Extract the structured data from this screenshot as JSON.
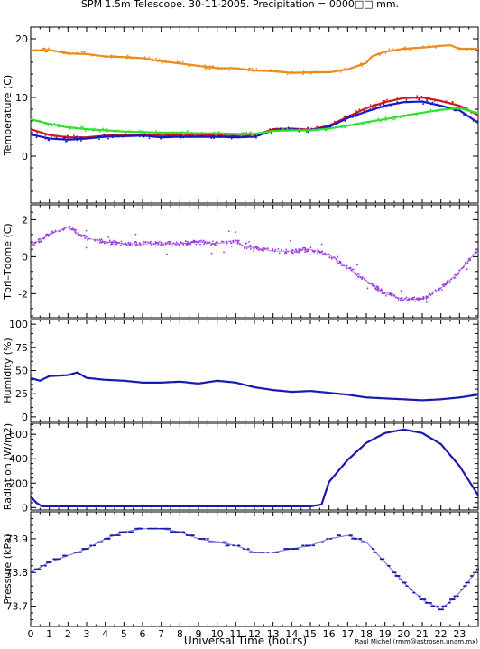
{
  "title": "SPM 1.5m Telescope. 30-11-2005. Precipitation = 0000□□ mm.",
  "xlabel": "Universal Time (hours)",
  "credit": "Raul Michel (rmm@astrosen.unam.mx)",
  "colors": {
    "orange": "#ee8a1c",
    "red": "#d01818",
    "blue": "#1818c8",
    "green": "#30e030",
    "purple": "#9a3ae0",
    "navy": "#1a1ab0"
  },
  "chart_data": [
    {
      "type": "scatter",
      "ylabel": "Temperature (C)",
      "xlim": [
        0,
        24
      ],
      "ylim": [
        -8,
        22
      ],
      "yticks": [
        0,
        10,
        20
      ],
      "xticks": [
        0,
        1,
        2,
        3,
        4,
        5,
        6,
        7,
        8,
        9,
        10,
        11,
        12,
        13,
        14,
        15,
        16,
        17,
        18,
        19,
        20,
        21,
        22,
        23
      ],
      "series": [
        {
          "color": "#ee8a1c",
          "points": [
            [
              0,
              18.0
            ],
            [
              1,
              18.1
            ],
            [
              2,
              17.5
            ],
            [
              3,
              17.4
            ],
            [
              4,
              17.0
            ],
            [
              5,
              16.9
            ],
            [
              6,
              16.7
            ],
            [
              7,
              16.2
            ],
            [
              8,
              15.8
            ],
            [
              9,
              15.4
            ],
            [
              10,
              15.0
            ],
            [
              11,
              15.0
            ],
            [
              12,
              14.6
            ],
            [
              13,
              14.5
            ],
            [
              14,
              14.2
            ],
            [
              15,
              14.3
            ],
            [
              16,
              14.3
            ],
            [
              17,
              14.8
            ],
            [
              18,
              15.9
            ],
            [
              18.3,
              17.0
            ],
            [
              19,
              17.8
            ],
            [
              20,
              18.3
            ],
            [
              21,
              18.5
            ],
            [
              22,
              18.8
            ],
            [
              22.5,
              18.9
            ],
            [
              23,
              18.3
            ],
            [
              24,
              18.3
            ]
          ]
        },
        {
          "color": "#d01818",
          "points": [
            [
              0,
              4.6
            ],
            [
              1,
              3.6
            ],
            [
              2,
              3.2
            ],
            [
              3,
              3.2
            ],
            [
              4,
              3.5
            ],
            [
              5,
              3.6
            ],
            [
              6,
              3.7
            ],
            [
              7,
              3.5
            ],
            [
              8,
              3.6
            ],
            [
              9,
              3.5
            ],
            [
              10,
              3.6
            ],
            [
              11,
              3.4
            ],
            [
              12,
              3.5
            ],
            [
              13,
              4.6
            ],
            [
              14,
              4.7
            ],
            [
              15,
              4.5
            ],
            [
              16,
              5.2
            ],
            [
              17,
              6.7
            ],
            [
              18,
              8.2
            ],
            [
              19,
              9.2
            ],
            [
              20,
              9.9
            ],
            [
              21,
              10.0
            ],
            [
              22,
              9.4
            ],
            [
              23,
              8.6
            ],
            [
              24,
              7.0
            ]
          ]
        },
        {
          "color": "#1818c8",
          "points": [
            [
              0,
              3.7
            ],
            [
              1,
              3.0
            ],
            [
              2,
              2.8
            ],
            [
              3,
              3.0
            ],
            [
              4,
              3.3
            ],
            [
              5,
              3.4
            ],
            [
              6,
              3.5
            ],
            [
              7,
              3.2
            ],
            [
              8,
              3.3
            ],
            [
              9,
              3.3
            ],
            [
              10,
              3.3
            ],
            [
              11,
              3.2
            ],
            [
              12,
              3.3
            ],
            [
              13,
              4.4
            ],
            [
              14,
              4.6
            ],
            [
              15,
              4.4
            ],
            [
              16,
              5.0
            ],
            [
              17,
              6.5
            ],
            [
              18,
              7.6
            ],
            [
              19,
              8.6
            ],
            [
              20,
              9.2
            ],
            [
              21,
              9.3
            ],
            [
              22,
              8.6
            ],
            [
              23,
              7.8
            ],
            [
              24,
              5.7
            ]
          ]
        },
        {
          "color": "#30e030",
          "points": [
            [
              0,
              6.3
            ],
            [
              1,
              5.5
            ],
            [
              2,
              4.9
            ],
            [
              3,
              4.6
            ],
            [
              4,
              4.4
            ],
            [
              5,
              4.2
            ],
            [
              6,
              4.1
            ],
            [
              7,
              4.0
            ],
            [
              8,
              4.0
            ],
            [
              9,
              3.9
            ],
            [
              10,
              3.9
            ],
            [
              11,
              3.8
            ],
            [
              12,
              3.8
            ],
            [
              13,
              4.3
            ],
            [
              14,
              4.4
            ],
            [
              15,
              4.4
            ],
            [
              16,
              4.7
            ],
            [
              17,
              5.2
            ],
            [
              18,
              5.8
            ],
            [
              19,
              6.3
            ],
            [
              20,
              6.9
            ],
            [
              21,
              7.4
            ],
            [
              22,
              7.9
            ],
            [
              23,
              8.2
            ],
            [
              24,
              7.3
            ]
          ]
        }
      ]
    },
    {
      "type": "scatter",
      "ylabel": "Tpri–Tdome (C)",
      "xlim": [
        0,
        24
      ],
      "ylim": [
        -3.3,
        2.8
      ],
      "yticks": [
        2,
        0,
        -2
      ],
      "series": [
        {
          "color": "#9a3ae0",
          "points": [
            [
              0,
              0.6
            ],
            [
              1,
              1.2
            ],
            [
              1.5,
              1.4
            ],
            [
              2,
              1.6
            ],
            [
              2.5,
              1.3
            ],
            [
              3,
              1.0
            ],
            [
              4,
              0.8
            ],
            [
              5,
              0.7
            ],
            [
              6,
              0.7
            ],
            [
              7,
              0.7
            ],
            [
              8,
              0.7
            ],
            [
              9,
              0.8
            ],
            [
              10,
              0.7
            ],
            [
              11,
              0.9
            ],
            [
              11.5,
              0.5
            ],
            [
              12,
              0.5
            ],
            [
              13,
              0.3
            ],
            [
              14,
              0.3
            ],
            [
              15,
              0.4
            ],
            [
              16,
              0.1
            ],
            [
              17,
              -0.6
            ],
            [
              18,
              -1.3
            ],
            [
              19,
              -2.0
            ],
            [
              20,
              -2.3
            ],
            [
              21,
              -2.3
            ],
            [
              22,
              -1.7
            ],
            [
              23,
              -0.8
            ],
            [
              24,
              0.4
            ]
          ]
        }
      ]
    },
    {
      "type": "line",
      "ylabel": "Humidity (%)",
      "xlim": [
        0,
        24
      ],
      "ylim": [
        -5,
        105
      ],
      "yticks": [
        0,
        25,
        50,
        75,
        100
      ],
      "series": [
        {
          "color": "#1a1ab0",
          "points": [
            [
              0,
              42
            ],
            [
              0.5,
              39
            ],
            [
              1,
              44
            ],
            [
              2,
              45
            ],
            [
              2.5,
              48
            ],
            [
              3,
              42
            ],
            [
              4,
              40
            ],
            [
              5,
              39
            ],
            [
              6,
              37
            ],
            [
              7,
              37
            ],
            [
              8,
              38
            ],
            [
              9,
              36
            ],
            [
              10,
              39
            ],
            [
              11,
              37
            ],
            [
              12,
              32
            ],
            [
              13,
              29
            ],
            [
              14,
              27
            ],
            [
              15,
              28
            ],
            [
              16,
              26
            ],
            [
              17,
              24
            ],
            [
              18,
              21
            ],
            [
              19,
              20
            ],
            [
              20,
              19
            ],
            [
              21,
              18
            ],
            [
              22,
              19
            ],
            [
              23,
              21
            ],
            [
              24,
              24
            ]
          ]
        }
      ]
    },
    {
      "type": "line",
      "ylabel": "Radiation (W/m2)",
      "xlim": [
        0,
        24
      ],
      "ylim": [
        -20,
        690
      ],
      "yticks": [
        0,
        200,
        400,
        600
      ],
      "series": [
        {
          "color": "#1a1ab0",
          "points": [
            [
              0,
              90
            ],
            [
              0.3,
              40
            ],
            [
              0.6,
              10
            ],
            [
              15,
              10
            ],
            [
              15.6,
              25
            ],
            [
              16,
              210
            ],
            [
              17,
              390
            ],
            [
              18,
              530
            ],
            [
              19,
              610
            ],
            [
              20,
              640
            ],
            [
              21,
              610
            ],
            [
              22,
              520
            ],
            [
              23,
              340
            ],
            [
              24,
              100
            ]
          ]
        }
      ]
    },
    {
      "type": "scatter",
      "ylabel": "Pressure (kPa)",
      "xlim": [
        0,
        24
      ],
      "ylim": [
        73.64,
        73.98
      ],
      "yticks": [
        73.7,
        73.8,
        73.9
      ],
      "series": [
        {
          "color": "#1a1ab0",
          "points": [
            [
              0,
              73.8
            ],
            [
              1,
              73.83
            ],
            [
              2,
              73.85
            ],
            [
              3,
              73.87
            ],
            [
              4,
              73.9
            ],
            [
              5,
              73.92
            ],
            [
              6,
              73.93
            ],
            [
              7,
              73.93
            ],
            [
              8,
              73.92
            ],
            [
              9,
              73.9
            ],
            [
              10,
              73.89
            ],
            [
              11,
              73.88
            ],
            [
              12,
              73.86
            ],
            [
              13,
              73.86
            ],
            [
              14,
              73.87
            ],
            [
              15,
              73.88
            ],
            [
              16,
              73.9
            ],
            [
              17,
              73.91
            ],
            [
              18,
              73.89
            ],
            [
              19,
              73.83
            ],
            [
              20,
              73.77
            ],
            [
              21,
              73.72
            ],
            [
              22,
              73.69
            ],
            [
              23,
              73.74
            ],
            [
              24,
              73.81
            ]
          ]
        }
      ]
    }
  ]
}
